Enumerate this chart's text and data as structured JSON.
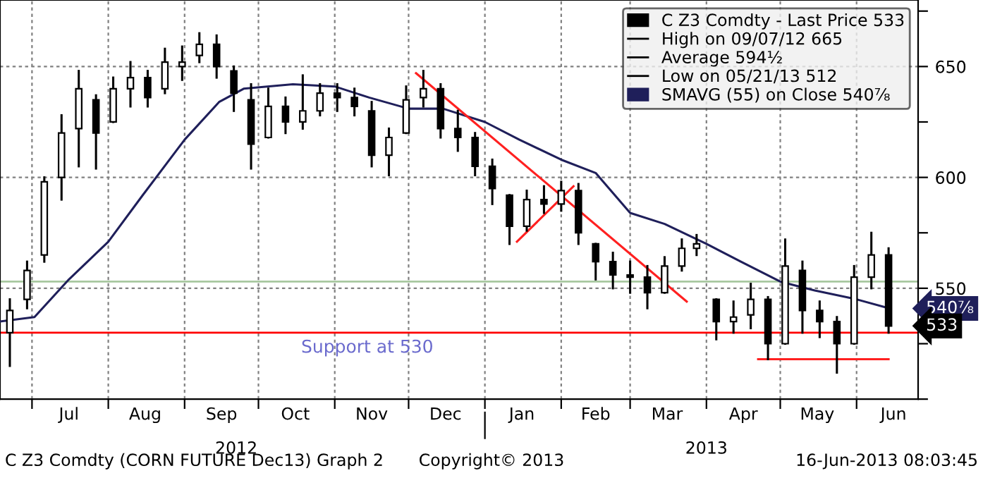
{
  "chart_data": {
    "type": "candlestick",
    "series": [
      {
        "name": "C Z3 Comdty - Last Price 533",
        "color": "#000000",
        "x": [
          "2012-06-22",
          "2012-06-29",
          "2012-07-06",
          "2012-07-13",
          "2012-07-20",
          "2012-07-27",
          "2012-08-03",
          "2012-08-10",
          "2012-08-17",
          "2012-08-24",
          "2012-08-31",
          "2012-09-07",
          "2012-09-14",
          "2012-09-21",
          "2012-09-28",
          "2012-10-05",
          "2012-10-12",
          "2012-10-19",
          "2012-10-26",
          "2012-11-02",
          "2012-11-09",
          "2012-11-16",
          "2012-11-23",
          "2012-11-30",
          "2012-12-07",
          "2012-12-14",
          "2012-12-21",
          "2012-12-28",
          "2013-01-04",
          "2013-01-11",
          "2013-01-18",
          "2013-01-25",
          "2013-02-01",
          "2013-02-08",
          "2013-02-15",
          "2013-02-22",
          "2013-03-01",
          "2013-03-08",
          "2013-03-15",
          "2013-03-22",
          "2013-03-28",
          "2013-04-05",
          "2013-04-12",
          "2013-04-19",
          "2013-04-26",
          "2013-05-03",
          "2013-05-10",
          "2013-05-17",
          "2013-05-24",
          "2013-05-31",
          "2013-06-07",
          "2013-06-14"
        ],
        "ohlc": [
          [
            530,
            545,
            515,
            540
          ],
          [
            545,
            562,
            541,
            558
          ],
          [
            565,
            600,
            562,
            598
          ],
          [
            600,
            628,
            590,
            620
          ],
          [
            622,
            648,
            605,
            640
          ],
          [
            635,
            637,
            604,
            620
          ],
          [
            625,
            645,
            625,
            640
          ],
          [
            640,
            652,
            632,
            645
          ],
          [
            645,
            648,
            632,
            636
          ],
          [
            640,
            658,
            638,
            652
          ],
          [
            650,
            659,
            644,
            652
          ],
          [
            655,
            665,
            652,
            660
          ],
          [
            660,
            664,
            645,
            650
          ],
          [
            648,
            650,
            630,
            638
          ],
          [
            635,
            642,
            604,
            615
          ],
          [
            618,
            640,
            618,
            632
          ],
          [
            632,
            636,
            620,
            625
          ],
          [
            625,
            646,
            622,
            630
          ],
          [
            630,
            642,
            628,
            638
          ],
          [
            638,
            642,
            630,
            636
          ],
          [
            636,
            640,
            628,
            632
          ],
          [
            630,
            634,
            605,
            610
          ],
          [
            610,
            622,
            601,
            618
          ],
          [
            620,
            641,
            620,
            635
          ],
          [
            636,
            648,
            632,
            640
          ],
          [
            640,
            642,
            618,
            622
          ],
          [
            622,
            630,
            612,
            618
          ],
          [
            618,
            620,
            601,
            605
          ],
          [
            605,
            608,
            588,
            595
          ],
          [
            592,
            592,
            570,
            578
          ],
          [
            578,
            594,
            576,
            590
          ],
          [
            590,
            596,
            584,
            588
          ],
          [
            588,
            598,
            585,
            594
          ],
          [
            594,
            597,
            570,
            575
          ],
          [
            570,
            570,
            554,
            562
          ],
          [
            562,
            566,
            550,
            556
          ],
          [
            556,
            562,
            548,
            555
          ],
          [
            555,
            560,
            541,
            548
          ],
          [
            548,
            564,
            548,
            560
          ],
          [
            560,
            572,
            558,
            568
          ],
          [
            568,
            574,
            565,
            570
          ],
          [
            545,
            545,
            527,
            535
          ],
          [
            535,
            544,
            530,
            537
          ],
          [
            538,
            552,
            532,
            545
          ],
          [
            545,
            546,
            518,
            525
          ],
          [
            525,
            572,
            525,
            560
          ],
          [
            558,
            562,
            530,
            540
          ],
          [
            540,
            544,
            528,
            535
          ],
          [
            535,
            537,
            512,
            525
          ],
          [
            525,
            560,
            525,
            555
          ],
          [
            555,
            575,
            550,
            565
          ],
          [
            565,
            568,
            530,
            533
          ]
        ]
      },
      {
        "type": "line",
        "name": "SMAVG (55) on Close 540⅞",
        "color": "#1f1f5a",
        "x": [
          "2012-06-18",
          "2012-07-02",
          "2012-07-16",
          "2012-08-01",
          "2012-08-15",
          "2012-09-01",
          "2012-09-15",
          "2012-09-25",
          "2012-10-15",
          "2012-11-01",
          "2012-11-15",
          "2012-12-01",
          "2012-12-15",
          "2013-01-01",
          "2013-01-15",
          "2013-02-01",
          "2013-02-15",
          "2013-03-01",
          "2013-03-15",
          "2013-04-01",
          "2013-04-15",
          "2013-05-01",
          "2013-05-15",
          "2013-06-01",
          "2013-06-14"
        ],
        "values": [
          535,
          537,
          554,
          571,
          592,
          617,
          634,
          640,
          642,
          641,
          636,
          631,
          631,
          625,
          617,
          608,
          602,
          584,
          579,
          570,
          562,
          553,
          549,
          545,
          541
        ]
      },
      {
        "type": "line",
        "color": "#ff2020",
        "x": [
          "2012-12-04",
          "2013-03-24"
        ],
        "values": [
          647,
          544
        ]
      },
      {
        "type": "line",
        "color": "#ff2020",
        "x": [
          "2013-01-14",
          "2013-02-06"
        ],
        "values": [
          571,
          596
        ]
      },
      {
        "type": "line",
        "color": "#ff2020",
        "x": [
          "2013-04-22",
          "2013-06-14"
        ],
        "values": [
          518,
          518
        ]
      }
    ],
    "xlim": [
      "2012-06-18",
      "2013-06-26"
    ],
    "xticks": [
      {
        "value": "2012-07-01",
        "label": null
      },
      {
        "value": "2012-07-16",
        "label": "Jul"
      },
      {
        "value": "2012-08-01",
        "label": null
      },
      {
        "value": "2012-08-16",
        "label": "Aug"
      },
      {
        "value": "2012-09-01",
        "label": null
      },
      {
        "value": "2012-09-16",
        "label": "Sep"
      },
      {
        "value": "2012-10-01",
        "label": null
      },
      {
        "value": "2012-10-16",
        "label": "Oct"
      },
      {
        "value": "2012-11-01",
        "label": null
      },
      {
        "value": "2012-11-16",
        "label": "Nov"
      },
      {
        "value": "2012-12-01",
        "label": null
      },
      {
        "value": "2012-12-16",
        "label": "Dec"
      },
      {
        "value": "2013-01-01",
        "label": null
      },
      {
        "value": "2013-01-16",
        "label": "Jan"
      },
      {
        "value": "2013-02-01",
        "label": null
      },
      {
        "value": "2013-02-15",
        "label": "Feb"
      },
      {
        "value": "2013-03-01",
        "label": null
      },
      {
        "value": "2013-03-16",
        "label": "Mar"
      },
      {
        "value": "2013-04-01",
        "label": null
      },
      {
        "value": "2013-04-16",
        "label": "Apr"
      },
      {
        "value": "2013-05-01",
        "label": null
      },
      {
        "value": "2013-05-16",
        "label": "May"
      },
      {
        "value": "2013-06-01",
        "label": null
      },
      {
        "value": "2013-06-16",
        "label": "Jun"
      }
    ],
    "x2lim": [
      "2012-06-18",
      "2013-06-26"
    ],
    "x2ticks": [
      {
        "value": "2012-09-22",
        "label": "2012"
      },
      {
        "value": "2013-01-01",
        "label": null
      },
      {
        "value": "2013-04-01",
        "label": "2013"
      }
    ],
    "ylim": [
      500,
      680
    ],
    "yticks": [
      {
        "value": 500,
        "label": null
      },
      {
        "value": 525,
        "label": null
      },
      550,
      {
        "value": 575,
        "label": null
      },
      600,
      {
        "value": 625,
        "label": null
      },
      650,
      {
        "value": 675,
        "label": null
      }
    ],
    "ref_lines": [
      {
        "axis": "y",
        "value": 530,
        "label": "Support at 530",
        "color": "#ff0000"
      },
      {
        "axis": "y",
        "value": 553,
        "color": "#a8c8a0"
      }
    ],
    "annotations": [
      "High on 09/07/12 665",
      "Average 594½",
      "Low on 05/21/13 512",
      {
        "text": "540⅞",
        "x": "2013-06-14",
        "y": 540.875
      },
      {
        "text": "533",
        "x": "2013-06-14",
        "y": 533
      },
      "C Z3 Comdty (CORN FUTURE Dec13) Graph 2",
      "Copyright© 2013",
      "16-Jun-2013 08:03:45"
    ],
    "grid": true,
    "legend": "top right"
  }
}
